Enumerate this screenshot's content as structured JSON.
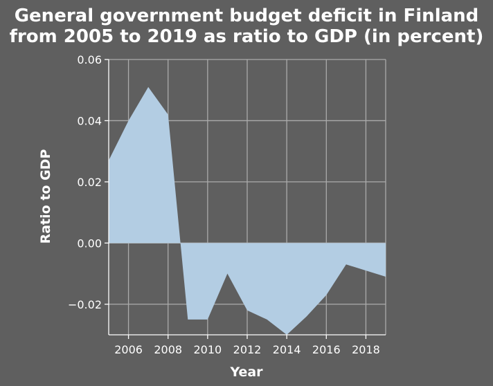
{
  "chart_data": {
    "type": "area",
    "title_lines": [
      "General government budget deficit in Finland",
      "from 2005 to 2019 as ratio to GDP (in percent)"
    ],
    "xlabel": "Year",
    "ylabel": "Ratio to GDP",
    "x": [
      2005,
      2006,
      2007,
      2008,
      2009,
      2010,
      2011,
      2012,
      2013,
      2014,
      2015,
      2016,
      2017,
      2018,
      2019
    ],
    "series": [
      {
        "values": [
          0.027,
          0.04,
          0.051,
          0.042,
          -0.025,
          -0.025,
          -0.01,
          -0.022,
          -0.025,
          -0.03,
          -0.024,
          -0.017,
          -0.007,
          -0.009,
          -0.011
        ]
      }
    ],
    "xlim": [
      2005,
      2019
    ],
    "ylim": [
      -0.03,
      0.06
    ],
    "x_ticks": [
      2006,
      2008,
      2010,
      2012,
      2014,
      2016,
      2018
    ],
    "y_ticks": [
      -0.02,
      0.0,
      0.02,
      0.04,
      0.06
    ],
    "y_tick_labels": [
      "−0.02",
      "0.00",
      "0.02",
      "0.04",
      "0.06"
    ],
    "grid": true,
    "fill_color": "#b3cde3",
    "grid_color": "#ababab",
    "background_color": "#5f5f5f",
    "text_color": "#ffffff"
  }
}
